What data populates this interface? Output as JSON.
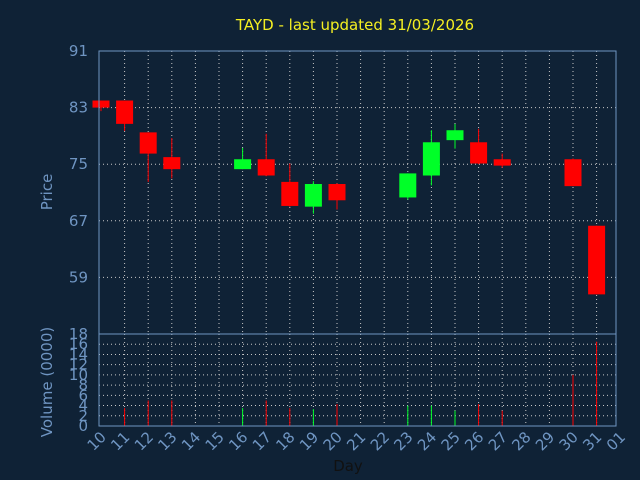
{
  "chart_data": {
    "type": "candlestick",
    "title": "TAYD - last updated 31/03/2026",
    "xlabel": "Day",
    "colors": {
      "up": "#00ff28",
      "down": "#ff0000",
      "background": "#0f2236",
      "title": "#f4ef22",
      "axis": "#6f95c2"
    },
    "x_ticks": [
      "10",
      "11",
      "12",
      "13",
      "14",
      "15",
      "16",
      "17",
      "18",
      "19",
      "20",
      "21",
      "22",
      "23",
      "24",
      "25",
      "26",
      "27",
      "28",
      "29",
      "30",
      "31",
      "01"
    ],
    "price_panel": {
      "ylabel": "Price",
      "ylim": [
        51,
        91
      ],
      "yticks": [
        91,
        83,
        75,
        67,
        59
      ],
      "candles": [
        {
          "day": "10",
          "open": 84,
          "close": 83,
          "high": 84,
          "low": 82.5
        },
        {
          "day": "11",
          "open": 84,
          "close": 80.7,
          "high": 84,
          "low": 79.7
        },
        {
          "day": "12",
          "open": 79.5,
          "close": 76.5,
          "high": 79.5,
          "low": 72.5
        },
        {
          "day": "13",
          "open": 76,
          "close": 74.3,
          "high": 78.7,
          "low": 73
        },
        {
          "day": "16",
          "open": 74.3,
          "close": 75.7,
          "high": 77.3,
          "low": 74.3
        },
        {
          "day": "17",
          "open": 75.7,
          "close": 73.4,
          "high": 79.3,
          "low": 73.3
        },
        {
          "day": "18",
          "open": 72.5,
          "close": 69.1,
          "high": 75.1,
          "low": 69
        },
        {
          "day": "19",
          "open": 69,
          "close": 72.2,
          "high": 72.6,
          "low": 68
        },
        {
          "day": "20",
          "open": 72.2,
          "close": 69.9,
          "high": 72.3,
          "low": 68.6
        },
        {
          "day": "23",
          "open": 70.3,
          "close": 73.7,
          "high": 73.7,
          "low": 70
        },
        {
          "day": "24",
          "open": 73.4,
          "close": 78.1,
          "high": 79.8,
          "low": 72
        },
        {
          "day": "25",
          "open": 78.4,
          "close": 79.8,
          "high": 80.7,
          "low": 77.2
        },
        {
          "day": "26",
          "open": 78.1,
          "close": 75.1,
          "high": 80,
          "low": 75
        },
        {
          "day": "27",
          "open": 75.7,
          "close": 74.8,
          "high": 76.5,
          "low": 74.5
        },
        {
          "day": "30",
          "open": 75.7,
          "close": 71.9,
          "high": 75.8,
          "low": 71.9
        },
        {
          "day": "31",
          "open": 66.3,
          "close": 56.6,
          "high": 66.3,
          "low": 56.6
        }
      ]
    },
    "volume_panel": {
      "ylabel": "Volume (0000)",
      "ylim": [
        0,
        18
      ],
      "yticks": [
        18,
        16,
        14,
        12,
        10,
        8,
        6,
        4,
        2,
        0
      ],
      "bars": [
        {
          "day": "11",
          "value": 3.5
        },
        {
          "day": "12",
          "value": 5
        },
        {
          "day": "13",
          "value": 5
        },
        {
          "day": "16",
          "value": 3.5
        },
        {
          "day": "17",
          "value": 5
        },
        {
          "day": "18",
          "value": 3.5
        },
        {
          "day": "19",
          "value": 3.3
        },
        {
          "day": "20",
          "value": 4.3
        },
        {
          "day": "23",
          "value": 4
        },
        {
          "day": "24",
          "value": 4
        },
        {
          "day": "25",
          "value": 3
        },
        {
          "day": "26",
          "value": 4.3
        },
        {
          "day": "27",
          "value": 3
        },
        {
          "day": "30",
          "value": 10
        },
        {
          "day": "31",
          "value": 16.5
        }
      ]
    }
  }
}
